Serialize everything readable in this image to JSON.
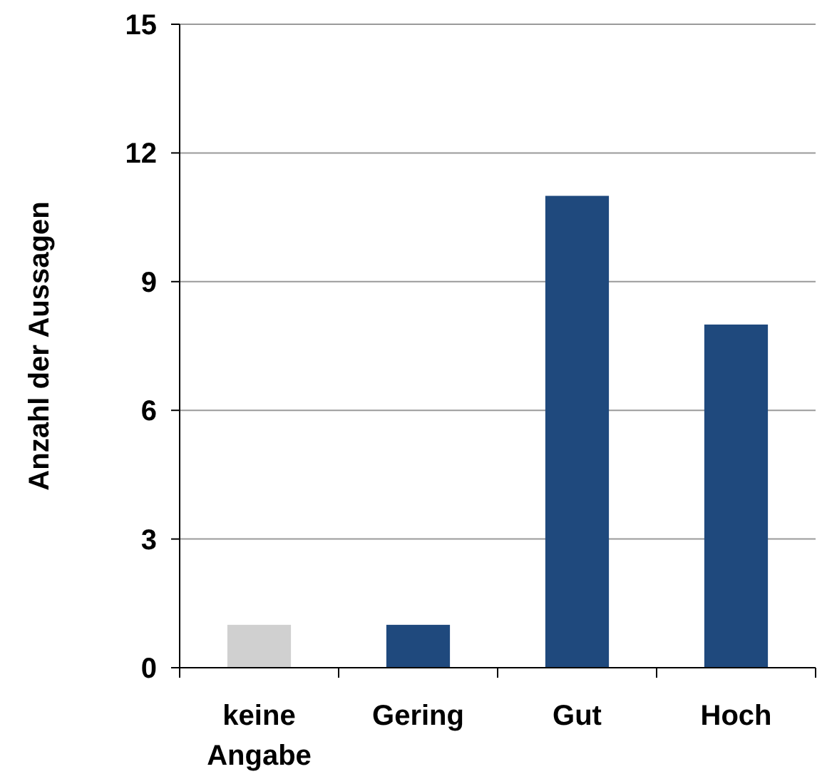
{
  "chart_data": {
    "type": "bar",
    "ylabel": "Anzahl der Aussagen",
    "categories": [
      "keine Angabe",
      "Gering",
      "Gut",
      "Hoch"
    ],
    "values": [
      1,
      1,
      11,
      8
    ],
    "colors": [
      "#d0d0d0",
      "#1f497d",
      "#1f497d",
      "#1f497d"
    ],
    "ylim": [
      0,
      15
    ],
    "yticks": [
      0,
      3,
      6,
      9,
      12,
      15
    ],
    "grid": "y"
  }
}
